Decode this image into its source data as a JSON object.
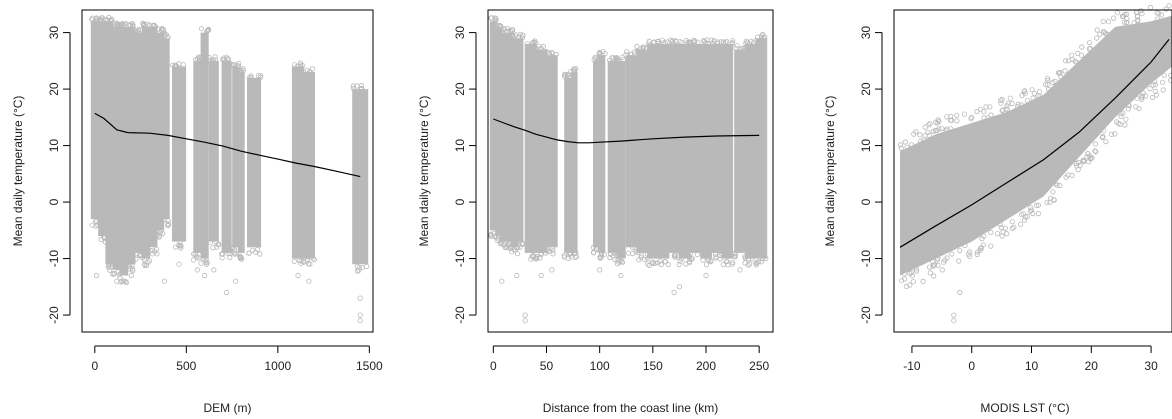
{
  "chart_data": [
    {
      "type": "scatter",
      "title": "",
      "xlabel": "DEM (m)",
      "ylabel": "Mean daily temperature (°C)",
      "xlim": [
        -70,
        1520
      ],
      "ylim": [
        -23,
        34
      ],
      "xticks": [
        0,
        500,
        1000,
        1500
      ],
      "yticks": [
        -20,
        -10,
        0,
        10,
        20,
        30
      ],
      "point_color": "#b9b9b9",
      "line_color": "#000000",
      "columns": [
        {
          "x": 0,
          "ymin": -3,
          "ymax": 32
        },
        {
          "x": 40,
          "ymin": -6,
          "ymax": 32
        },
        {
          "x": 80,
          "ymin": -11,
          "ymax": 32
        },
        {
          "x": 120,
          "ymin": -12,
          "ymax": 31
        },
        {
          "x": 160,
          "ymin": -13,
          "ymax": 31
        },
        {
          "x": 200,
          "ymin": -11,
          "ymax": 31
        },
        {
          "x": 240,
          "ymin": -9,
          "ymax": 30
        },
        {
          "x": 280,
          "ymin": -10,
          "ymax": 31
        },
        {
          "x": 320,
          "ymin": -8,
          "ymax": 31
        },
        {
          "x": 360,
          "ymin": -5,
          "ymax": 30
        },
        {
          "x": 390,
          "ymin": -3,
          "ymax": 29
        },
        {
          "x": 460,
          "ymin": -7,
          "ymax": 24
        },
        {
          "x": 560,
          "ymin": -9,
          "ymax": 25
        },
        {
          "x": 600,
          "ymin": -10,
          "ymax": 30
        },
        {
          "x": 650,
          "ymin": -7,
          "ymax": 25
        },
        {
          "x": 720,
          "ymin": -9,
          "ymax": 25
        },
        {
          "x": 770,
          "ymin": -8,
          "ymax": 24
        },
        {
          "x": 800,
          "ymin": -9,
          "ymax": 23
        },
        {
          "x": 870,
          "ymin": -8,
          "ymax": 22
        },
        {
          "x": 1110,
          "ymin": -10,
          "ymax": 24
        },
        {
          "x": 1170,
          "ymin": -10,
          "ymax": 23
        },
        {
          "x": 1450,
          "ymin": -11,
          "ymax": 20
        }
      ],
      "outliers": [
        {
          "x": 10,
          "y": -13
        },
        {
          "x": 120,
          "y": -14
        },
        {
          "x": 200,
          "y": -13
        },
        {
          "x": 380,
          "y": -14
        },
        {
          "x": 460,
          "y": -11
        },
        {
          "x": 560,
          "y": -12
        },
        {
          "x": 600,
          "y": -13
        },
        {
          "x": 650,
          "y": -12
        },
        {
          "x": 720,
          "y": -16
        },
        {
          "x": 770,
          "y": -14
        },
        {
          "x": 1110,
          "y": -13
        },
        {
          "x": 1170,
          "y": -14
        },
        {
          "x": 1450,
          "y": -17
        },
        {
          "x": 1450,
          "y": -20
        },
        {
          "x": 1450,
          "y": -21
        }
      ],
      "line": {
        "x": [
          0,
          50,
          120,
          180,
          300,
          400,
          500,
          600,
          700,
          800,
          900,
          1000,
          1100,
          1200,
          1300,
          1450
        ],
        "y": [
          15.7,
          14.8,
          12.8,
          12.3,
          12.2,
          11.8,
          11.2,
          10.6,
          9.9,
          9.0,
          8.3,
          7.6,
          6.9,
          6.3,
          5.6,
          4.5
        ]
      }
    },
    {
      "type": "scatter",
      "title": "",
      "xlabel": "Distance from the coast line (km)",
      "ylabel": "Mean daily temperature (°C)",
      "xlim": [
        -5,
        263
      ],
      "ylim": [
        -23,
        34
      ],
      "xticks": [
        0,
        50,
        100,
        150,
        200,
        250
      ],
      "yticks": [
        -20,
        -10,
        0,
        10,
        20,
        30
      ],
      "point_color": "#b9b9b9",
      "line_color": "#000000",
      "columns": [
        {
          "x": 0,
          "ymin": -5,
          "ymax": 32
        },
        {
          "x": 5,
          "ymin": -6,
          "ymax": 31
        },
        {
          "x": 10,
          "ymin": -7,
          "ymax": 30
        },
        {
          "x": 15,
          "ymin": -7,
          "ymax": 30
        },
        {
          "x": 20,
          "ymin": -8,
          "ymax": 29
        },
        {
          "x": 25,
          "ymin": -7,
          "ymax": 29
        },
        {
          "x": 35,
          "ymin": -9,
          "ymax": 28
        },
        {
          "x": 45,
          "ymin": -9,
          "ymax": 27
        },
        {
          "x": 55,
          "ymin": -8,
          "ymax": 26
        },
        {
          "x": 70,
          "ymin": -9,
          "ymax": 22
        },
        {
          "x": 76,
          "ymin": -9,
          "ymax": 23
        },
        {
          "x": 97,
          "ymin": -8,
          "ymax": 25
        },
        {
          "x": 102,
          "ymin": -9,
          "ymax": 26
        },
        {
          "x": 112,
          "ymin": -9,
          "ymax": 25
        },
        {
          "x": 120,
          "ymin": -10,
          "ymax": 25
        },
        {
          "x": 130,
          "ymin": -8,
          "ymax": 26
        },
        {
          "x": 140,
          "ymin": -9,
          "ymax": 27
        },
        {
          "x": 150,
          "ymin": -10,
          "ymax": 28
        },
        {
          "x": 160,
          "ymin": -10,
          "ymax": 28
        },
        {
          "x": 170,
          "ymin": -9,
          "ymax": 28
        },
        {
          "x": 180,
          "ymin": -10,
          "ymax": 28
        },
        {
          "x": 190,
          "ymin": -9,
          "ymax": 28
        },
        {
          "x": 200,
          "ymin": -10,
          "ymax": 28
        },
        {
          "x": 210,
          "ymin": -9,
          "ymax": 28
        },
        {
          "x": 220,
          "ymin": -10,
          "ymax": 28
        },
        {
          "x": 232,
          "ymin": -9,
          "ymax": 27
        },
        {
          "x": 242,
          "ymin": -10,
          "ymax": 28
        },
        {
          "x": 252,
          "ymin": -10,
          "ymax": 29
        }
      ],
      "outliers": [
        {
          "x": 8,
          "y": -14
        },
        {
          "x": 22,
          "y": -13
        },
        {
          "x": 30,
          "y": -20
        },
        {
          "x": 30,
          "y": -21
        },
        {
          "x": 45,
          "y": -13
        },
        {
          "x": 55,
          "y": -12
        },
        {
          "x": 100,
          "y": -12
        },
        {
          "x": 120,
          "y": -13
        },
        {
          "x": 170,
          "y": -16
        },
        {
          "x": 175,
          "y": -15
        },
        {
          "x": 200,
          "y": -13
        },
        {
          "x": 232,
          "y": -12
        }
      ],
      "line": {
        "x": [
          0,
          10,
          20,
          30,
          40,
          50,
          60,
          70,
          80,
          90,
          100,
          120,
          150,
          180,
          210,
          250
        ],
        "y": [
          14.7,
          14.0,
          13.3,
          12.7,
          12.0,
          11.5,
          11.0,
          10.7,
          10.5,
          10.5,
          10.6,
          10.8,
          11.2,
          11.5,
          11.7,
          11.8
        ]
      }
    },
    {
      "type": "scatter",
      "title": "",
      "xlabel": "MODIS LST (°C)",
      "ylabel": "Mean daily temperature (°C)",
      "xlim": [
        -13,
        33.5
      ],
      "ylim": [
        -23,
        34
      ],
      "xticks": [
        -10,
        0,
        10,
        20,
        30
      ],
      "yticks": [
        -20,
        -10,
        0,
        10,
        20,
        30
      ],
      "point_color": "#b9b9b9",
      "line_color": "#000000",
      "band": {
        "x": [
          -12,
          -6,
          0,
          6,
          12,
          18,
          24,
          30,
          33.5
        ],
        "lower": [
          -13,
          -10,
          -7,
          -3,
          1,
          8,
          15,
          21,
          24
        ],
        "upper": [
          9,
          12,
          14,
          16,
          19,
          25,
          31,
          32,
          33
        ]
      },
      "outliers": [
        {
          "x": -10,
          "y": 9
        },
        {
          "x": -8,
          "y": 11
        },
        {
          "x": -5,
          "y": 13
        },
        {
          "x": -3,
          "y": -20
        },
        {
          "x": -3,
          "y": -21
        },
        {
          "x": -2,
          "y": -16
        },
        {
          "x": 2,
          "y": 16
        },
        {
          "x": 22,
          "y": 32
        }
      ],
      "line": {
        "x": [
          -12,
          -6,
          0,
          6,
          12,
          18,
          24,
          30,
          33
        ],
        "y": [
          -8,
          -4.2,
          -0.5,
          3.5,
          7.5,
          12.4,
          18.4,
          24.8,
          28.8
        ]
      }
    }
  ]
}
